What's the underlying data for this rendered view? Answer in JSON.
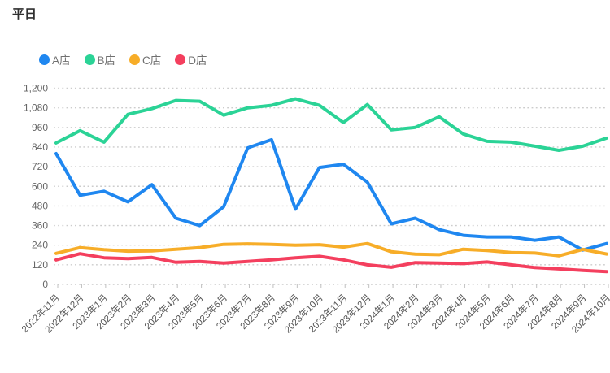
{
  "chart_data": {
    "type": "line",
    "title": "平日",
    "categories": [
      "2022年11月",
      "2022年12月",
      "2023年1月",
      "2023年2月",
      "2023年3月",
      "2023年4月",
      "2023年5月",
      "2023年6月",
      "2023年7月",
      "2023年8月",
      "2023年9月",
      "2023年10月",
      "2023年11月",
      "2023年12月",
      "2024年1月",
      "2024年2月",
      "2024年3月",
      "2024年4月",
      "2024年5月",
      "2024年6月",
      "2024年7月",
      "2024年8月",
      "2024年9月",
      "2024年10月"
    ],
    "series": [
      {
        "name": "A店",
        "color": "#1f87f0",
        "values": [
          800,
          545,
          570,
          505,
          610,
          405,
          360,
          475,
          835,
          885,
          460,
          715,
          735,
          625,
          370,
          405,
          335,
          300,
          290,
          290,
          270,
          290,
          210,
          250
        ]
      },
      {
        "name": "B店",
        "color": "#2bd396",
        "values": [
          865,
          940,
          870,
          1040,
          1075,
          1125,
          1120,
          1035,
          1080,
          1095,
          1135,
          1095,
          990,
          1100,
          945,
          960,
          1025,
          920,
          875,
          870,
          845,
          820,
          845,
          895
        ]
      },
      {
        "name": "C店",
        "color": "#f7ad28",
        "values": [
          190,
          225,
          212,
          203,
          205,
          215,
          225,
          245,
          248,
          245,
          240,
          243,
          228,
          250,
          200,
          185,
          182,
          215,
          207,
          195,
          192,
          175,
          214,
          186
        ]
      },
      {
        "name": "D店",
        "color": "#f43f5e",
        "values": [
          150,
          188,
          163,
          158,
          165,
          135,
          140,
          130,
          140,
          150,
          163,
          172,
          150,
          120,
          105,
          133,
          130,
          127,
          137,
          120,
          103,
          95,
          86,
          78
        ]
      }
    ],
    "xlabel": "",
    "ylabel": "",
    "ylim": [
      0,
      1200
    ],
    "ytick_step": 120,
    "ytick_labels": [
      "0",
      "120",
      "240",
      "360",
      "480",
      "600",
      "720",
      "840",
      "960",
      "1,080",
      "1,200"
    ],
    "grid": "horizontal-dotted",
    "legend_position": "top-left",
    "colors": {
      "axis_text": "#666666",
      "x_label_text": "#555555",
      "grid_line": "#cccccc",
      "tick_mark": "#c0c0c0",
      "title_text": "#2f2f2f",
      "legend_text": "#707070",
      "background": "#ffffff"
    }
  }
}
